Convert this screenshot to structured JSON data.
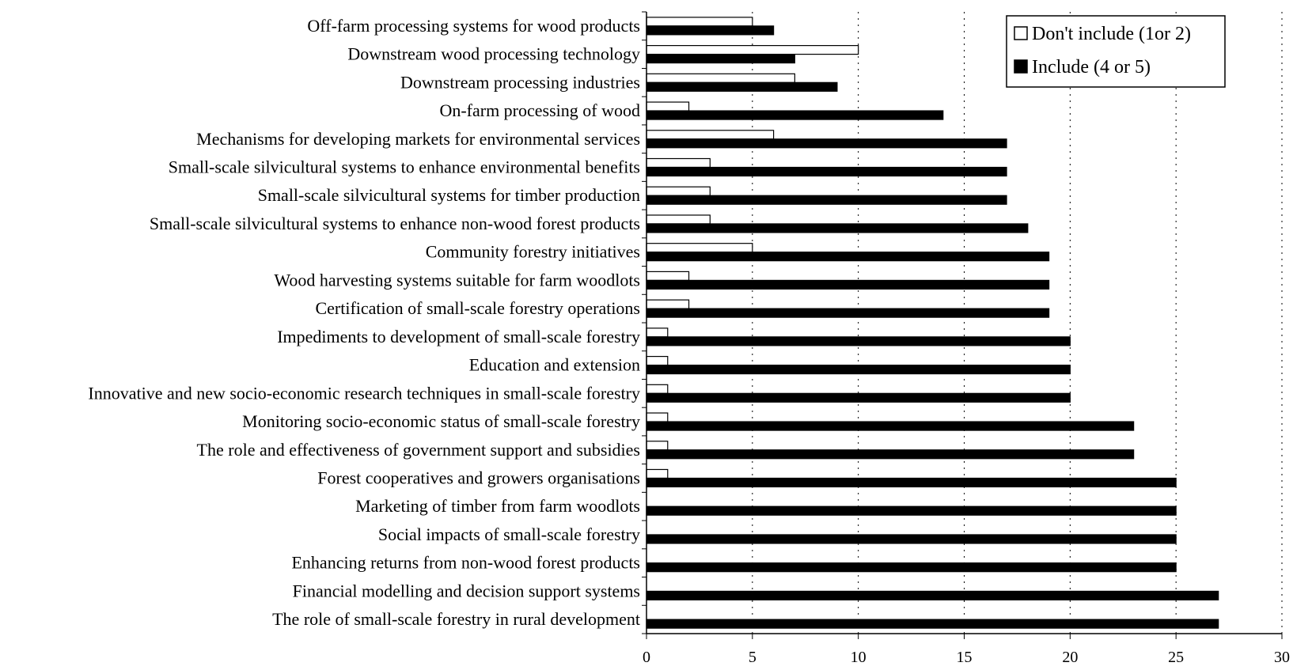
{
  "chart_data": {
    "type": "bar",
    "orientation": "horizontal",
    "title": "",
    "xlabel": "",
    "ylabel": "",
    "xlim": [
      0,
      30
    ],
    "x_ticks": [
      0,
      5,
      10,
      15,
      20,
      25,
      30
    ],
    "grid": "vertical dotted",
    "legend_position": "top-right",
    "categories": [
      "Off-farm processing systems for wood products",
      "Downstream wood processing technology",
      "Downstream processing industries",
      "On-farm processing of wood",
      "Mechanisms for developing markets for environmental services",
      "Small-scale silvicultural systems to enhance environmental benefits",
      "Small-scale silvicultural systems for timber production",
      "Small-scale silvicultural systems to enhance non-wood forest products",
      "Community forestry initiatives",
      "Wood harvesting systems suitable for farm woodlots",
      "Certification of small-scale forestry operations",
      "Impediments to development of small-scale forestry",
      "Education and extension",
      "Innovative and new socio-economic research techniques  in small-scale forestry",
      "Monitoring socio-economic status of small-scale forestry",
      "The role and effectiveness of government support and subsidies",
      "Forest cooperatives and growers organisations",
      "Marketing of timber from farm woodlots",
      "Social impacts of small-scale forestry",
      "Enhancing returns from non-wood forest products",
      "Financial modelling and decision support systems",
      "The role of small-scale forestry in rural development"
    ],
    "series": [
      {
        "name": "Don't include (1or 2)",
        "color": "#ffffff",
        "values": [
          5,
          10,
          7,
          2,
          6,
          3,
          3,
          3,
          5,
          2,
          2,
          1,
          1,
          1,
          1,
          1,
          1,
          0,
          0,
          0,
          0,
          0
        ]
      },
      {
        "name": "Include (4 or 5)",
        "color": "#000000",
        "values": [
          6,
          7,
          9,
          14,
          17,
          17,
          17,
          18,
          19,
          19,
          19,
          20,
          20,
          20,
          23,
          23,
          25,
          25,
          25,
          25,
          27,
          27
        ]
      }
    ]
  }
}
